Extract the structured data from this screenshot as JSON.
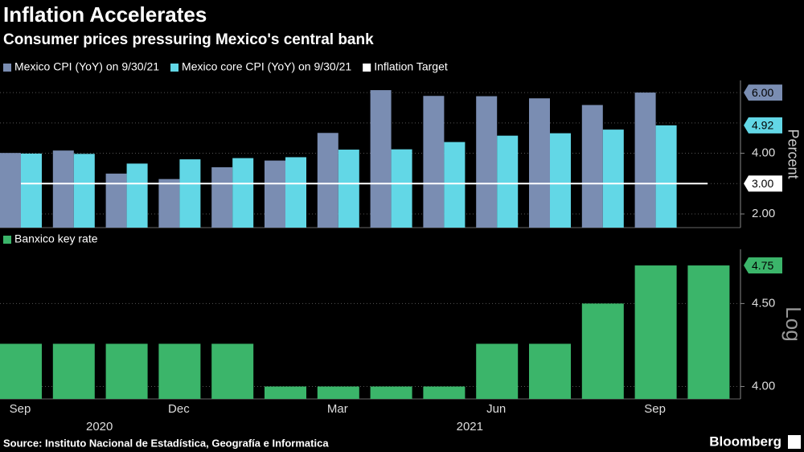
{
  "chart_data": [
    {
      "type": "bar",
      "title": "Inflation Accelerates",
      "subtitle": "Consumer prices pressuring Mexico's central bank",
      "y_label": "Percent",
      "series": [
        {
          "name": "Mexico CPI (YoY) on 9/30/21",
          "color": "#7a8db2",
          "values": [
            4.01,
            4.09,
            3.33,
            3.15,
            3.54,
            3.76,
            4.67,
            6.08,
            5.89,
            5.88,
            5.81,
            5.59,
            6.0
          ],
          "last_label": "6.00"
        },
        {
          "name": "Mexico core CPI (YoY) on 9/30/21",
          "color": "#62d7e6",
          "values": [
            3.99,
            3.98,
            3.66,
            3.8,
            3.84,
            3.87,
            4.12,
            4.13,
            4.37,
            4.58,
            4.66,
            4.78,
            4.92
          ],
          "last_label": "4.92"
        }
      ],
      "target": {
        "name": "Inflation Target",
        "color": "#ffffff",
        "value": 3,
        "label": "3.00"
      },
      "ylim": [
        1.55,
        6.4
      ],
      "yticks": [
        {
          "value": 2,
          "label": "2.00"
        },
        {
          "value": 4,
          "label": "4.00"
        }
      ],
      "ygrid": [
        2,
        3,
        4,
        5,
        6
      ]
    },
    {
      "type": "bar",
      "log": true,
      "y_label": "Log",
      "categories": [
        "Sep",
        null,
        null,
        "Dec",
        null,
        null,
        "Mar",
        null,
        null,
        "Jun",
        null,
        null,
        "Sep",
        null
      ],
      "x_groups": [
        {
          "label": "2020",
          "start": 0,
          "end": 3
        },
        {
          "label": "2021",
          "start": 4,
          "end": 13
        }
      ],
      "series": [
        {
          "name": "Banxico key rate",
          "color": "#3bb56a",
          "values": [
            4.25,
            4.25,
            4.25,
            4.25,
            4.25,
            4.0,
            4.0,
            4.0,
            4.0,
            4.25,
            4.25,
            4.5,
            4.75,
            4.75
          ],
          "last_label": "4.75"
        }
      ],
      "ylim": [
        3.93,
        4.86
      ],
      "yticks": [
        {
          "value": 4,
          "label": "4.00"
        },
        {
          "value": 4.5,
          "label": "4.50"
        }
      ]
    }
  ],
  "source": "Source: Instituto Nacional de Estadística, Geografía e Informatica",
  "brand": "Bloomberg"
}
